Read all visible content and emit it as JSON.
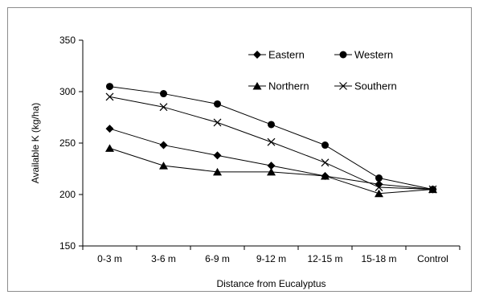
{
  "chart_data": {
    "type": "line",
    "categories": [
      "0-3 m",
      "3-6 m",
      "6-9 m",
      "9-12 m",
      "12-15 m",
      "15-18 m",
      "Control"
    ],
    "xlabel": "Distance from Eucalyptus",
    "ylabel": "Available K (kg/ha)",
    "ylim": [
      150,
      350
    ],
    "yticks": [
      150,
      200,
      250,
      300,
      350
    ],
    "grid": false,
    "legend_position": "top-right",
    "series": [
      {
        "name": "Eastern",
        "marker": "diamond",
        "color": "#000000",
        "values": [
          264,
          248,
          238,
          228,
          218,
          210,
          205
        ]
      },
      {
        "name": "Western",
        "marker": "circle",
        "color": "#000000",
        "values": [
          305,
          298,
          288,
          268,
          248,
          216,
          205
        ]
      },
      {
        "name": "Northern",
        "marker": "triangle",
        "color": "#000000",
        "values": [
          245,
          228,
          222,
          222,
          218,
          201,
          205
        ]
      },
      {
        "name": "Southern",
        "marker": "x",
        "color": "#000000",
        "values": [
          295,
          285,
          270,
          251,
          231,
          207,
          205
        ]
      }
    ]
  }
}
